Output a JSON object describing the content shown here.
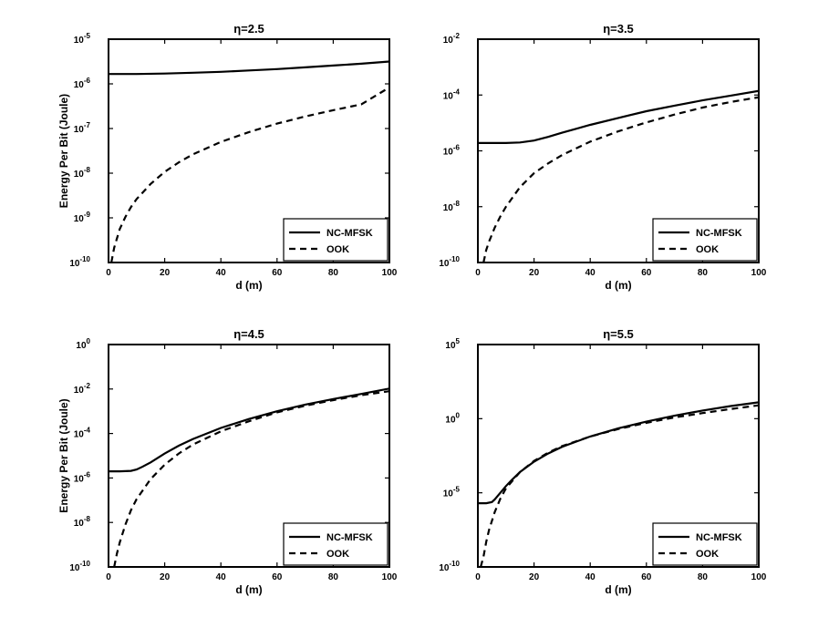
{
  "chart_data": [
    {
      "type": "line",
      "title": "η=2.5",
      "xlabel": "d (m)",
      "ylabel": "Energy Per Bit (Joule)",
      "xlim": [
        0,
        100
      ],
      "ylim_exp": [
        -10,
        -5
      ],
      "yscale": "log",
      "xticks": [
        "0",
        "20",
        "40",
        "60",
        "80",
        "100"
      ],
      "yticks": [
        {
          "base": "10",
          "exp": "-10"
        },
        {
          "base": "10",
          "exp": "-9"
        },
        {
          "base": "10",
          "exp": "-8"
        },
        {
          "base": "10",
          "exp": "-7"
        },
        {
          "base": "10",
          "exp": "-6"
        },
        {
          "base": "10",
          "exp": "-5"
        }
      ],
      "legend": "bottom-right",
      "series": [
        {
          "name": "NC-MFSK",
          "style": "solid",
          "x": [
            0,
            10,
            20,
            30,
            40,
            50,
            60,
            70,
            80,
            90,
            100
          ],
          "log10y": [
            -5.78,
            -5.78,
            -5.77,
            -5.75,
            -5.73,
            -5.7,
            -5.67,
            -5.63,
            -5.59,
            -5.55,
            -5.5
          ]
        },
        {
          "name": "OOK",
          "style": "dashed",
          "x": [
            1,
            2,
            4,
            6,
            8,
            10,
            15,
            20,
            25,
            30,
            40,
            50,
            60,
            70,
            80,
            90,
            100
          ],
          "log10y": [
            -10.0,
            -9.67,
            -9.25,
            -8.98,
            -8.76,
            -8.58,
            -8.24,
            -7.97,
            -7.76,
            -7.58,
            -7.3,
            -7.08,
            -6.89,
            -6.73,
            -6.59,
            -6.46,
            -6.08
          ]
        }
      ]
    },
    {
      "type": "line",
      "title": "η=3.5",
      "xlabel": "d (m)",
      "ylabel": "",
      "xlim": [
        0,
        100
      ],
      "ylim_exp": [
        -10,
        -2
      ],
      "yscale": "log",
      "xticks": [
        "0",
        "20",
        "40",
        "60",
        "80",
        "100"
      ],
      "yticks": [
        {
          "base": "10",
          "exp": "-10"
        },
        {
          "base": "10",
          "exp": "-8"
        },
        {
          "base": "10",
          "exp": "-6"
        },
        {
          "base": "10",
          "exp": "-4"
        },
        {
          "base": "10",
          "exp": "-2"
        }
      ],
      "legend": "bottom-right",
      "series": [
        {
          "name": "NC-MFSK",
          "style": "solid",
          "x": [
            0,
            5,
            10,
            15,
            20,
            25,
            30,
            40,
            50,
            60,
            70,
            80,
            90,
            100
          ],
          "log10y": [
            -5.72,
            -5.72,
            -5.72,
            -5.7,
            -5.63,
            -5.5,
            -5.35,
            -5.07,
            -4.82,
            -4.58,
            -4.38,
            -4.19,
            -4.02,
            -3.85
          ]
        },
        {
          "name": "OOK",
          "style": "dashed",
          "x": [
            2,
            3,
            4,
            6,
            8,
            10,
            15,
            20,
            25,
            30,
            40,
            50,
            60,
            70,
            80,
            90,
            100
          ],
          "log10y": [
            -10.0,
            -9.55,
            -9.25,
            -8.75,
            -8.35,
            -8.0,
            -7.3,
            -6.8,
            -6.45,
            -6.15,
            -5.67,
            -5.3,
            -4.98,
            -4.7,
            -4.45,
            -4.25,
            -4.08
          ]
        }
      ]
    },
    {
      "type": "line",
      "title": "η=4.5",
      "xlabel": "d (m)",
      "ylabel": "Energy Per Bit (Joule)",
      "xlim": [
        0,
        100
      ],
      "ylim_exp": [
        -10,
        0
      ],
      "yscale": "log",
      "xticks": [
        "0",
        "20",
        "40",
        "60",
        "80",
        "100"
      ],
      "yticks": [
        {
          "base": "10",
          "exp": "-10"
        },
        {
          "base": "10",
          "exp": "-8"
        },
        {
          "base": "10",
          "exp": "-6"
        },
        {
          "base": "10",
          "exp": "-4"
        },
        {
          "base": "10",
          "exp": "-2"
        },
        {
          "base": "10",
          "exp": "0"
        }
      ],
      "legend": "bottom-right",
      "series": [
        {
          "name": "NC-MFSK",
          "style": "solid",
          "x": [
            0,
            4,
            8,
            10,
            12,
            15,
            20,
            25,
            30,
            40,
            50,
            60,
            70,
            80,
            90,
            100
          ],
          "log10y": [
            -5.7,
            -5.7,
            -5.68,
            -5.62,
            -5.5,
            -5.3,
            -4.9,
            -4.55,
            -4.25,
            -3.75,
            -3.35,
            -3.0,
            -2.7,
            -2.45,
            -2.22,
            -1.98
          ]
        },
        {
          "name": "OOK",
          "style": "dashed",
          "x": [
            2,
            3,
            4,
            6,
            8,
            10,
            15,
            20,
            25,
            30,
            40,
            50,
            60,
            70,
            80,
            90,
            100
          ],
          "log10y": [
            -10.0,
            -9.4,
            -8.9,
            -8.1,
            -7.45,
            -6.95,
            -6.05,
            -5.4,
            -4.9,
            -4.5,
            -3.9,
            -3.45,
            -3.05,
            -2.75,
            -2.5,
            -2.28,
            -2.1
          ]
        }
      ]
    },
    {
      "type": "line",
      "title": "η=5.5",
      "xlabel": "d (m)",
      "ylabel": "",
      "xlim": [
        0,
        100
      ],
      "ylim_exp": [
        -10,
        5
      ],
      "yscale": "log",
      "xticks": [
        "0",
        "20",
        "40",
        "60",
        "80",
        "100"
      ],
      "yticks": [
        {
          "base": "10",
          "exp": "-10"
        },
        {
          "base": "10",
          "exp": "-5"
        },
        {
          "base": "10",
          "exp": "0"
        },
        {
          "base": "10",
          "exp": "5"
        }
      ],
      "legend": "bottom-right",
      "series": [
        {
          "name": "NC-MFSK",
          "style": "solid",
          "x": [
            0,
            3,
            5,
            6,
            8,
            10,
            12,
            15,
            20,
            25,
            30,
            40,
            50,
            60,
            70,
            80,
            90,
            100
          ],
          "log10y": [
            -5.7,
            -5.7,
            -5.62,
            -5.45,
            -5.0,
            -4.55,
            -4.15,
            -3.6,
            -2.9,
            -2.35,
            -1.9,
            -1.2,
            -0.65,
            -0.2,
            0.2,
            0.55,
            0.85,
            1.1
          ]
        },
        {
          "name": "OOK",
          "style": "dashed",
          "x": [
            1,
            2,
            3,
            4,
            6,
            8,
            10,
            15,
            20,
            25,
            30,
            40,
            50,
            60,
            70,
            80,
            90,
            100
          ],
          "log10y": [
            -10.0,
            -9.3,
            -8.3,
            -7.5,
            -6.3,
            -5.4,
            -4.7,
            -3.6,
            -2.85,
            -2.3,
            -1.85,
            -1.2,
            -0.7,
            -0.28,
            0.08,
            0.38,
            0.65,
            0.9
          ]
        }
      ]
    }
  ]
}
